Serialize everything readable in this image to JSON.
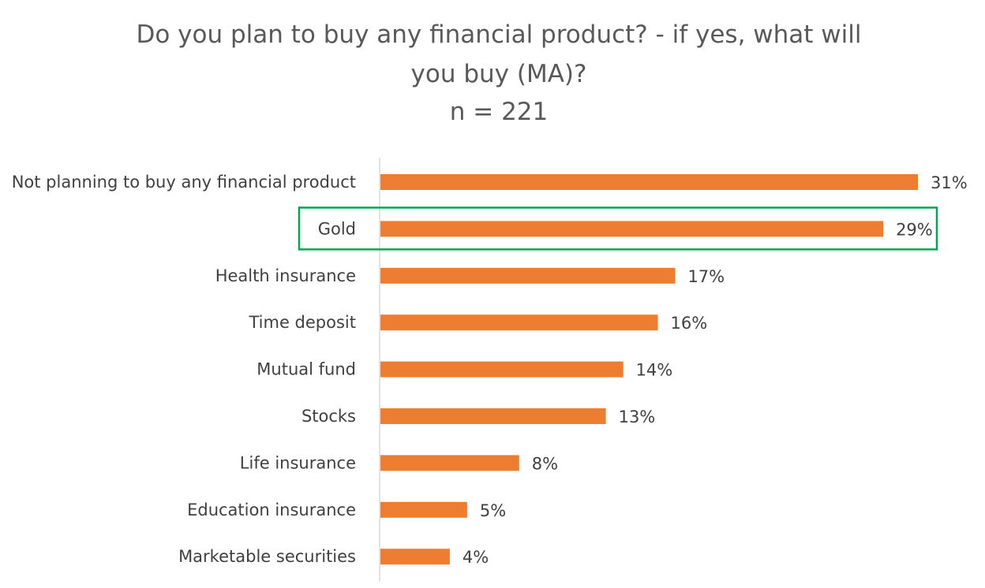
{
  "chart_data": {
    "type": "bar",
    "orientation": "horizontal",
    "title_lines": [
      "Do you plan to buy any financial product? - if yes, what will",
      "you buy (MA)?",
      "n = 221"
    ],
    "categories": [
      "Not planning to buy any financial product",
      "Gold",
      "Health insurance",
      "Time deposit",
      "Mutual fund",
      "Stocks",
      "Life insurance",
      "Education insurance",
      "Marketable securities"
    ],
    "values": [
      31,
      29,
      17,
      16,
      14,
      13,
      8,
      5,
      4
    ],
    "value_labels": [
      "31%",
      "29%",
      "17%",
      "16%",
      "14%",
      "13%",
      "8%",
      "5%",
      "4%"
    ],
    "unit": "%",
    "xlim": [
      0,
      31
    ],
    "bar_color": "#ED7D31",
    "highlighted_category": "Gold",
    "highlight_color": "#00A651",
    "axis_color": "#D9D9D9",
    "grid": false,
    "legend": "none"
  }
}
